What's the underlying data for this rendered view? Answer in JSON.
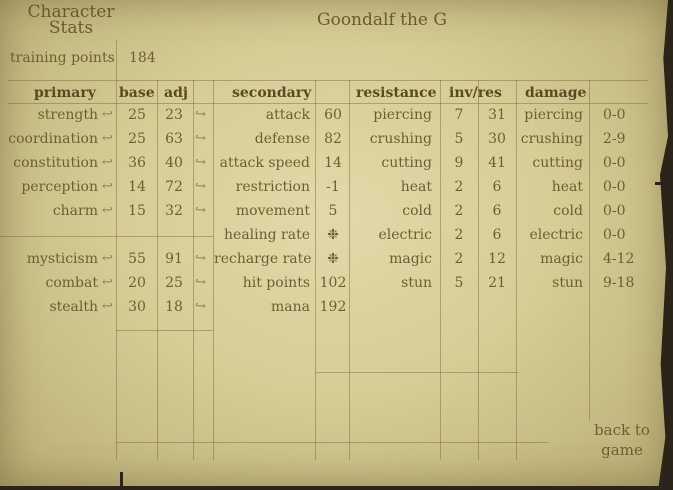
{
  "header": {
    "panel_title_line1": "Character",
    "panel_title_line2": "Stats",
    "character_name": "Goondalf the G",
    "training_points_label": "training points",
    "training_points_value": "184",
    "back_line1": "back to",
    "back_line2": "game"
  },
  "columns": {
    "primary": "primary",
    "base": "base",
    "adj": "adj",
    "secondary": "secondary",
    "resistance": "resistance",
    "inv_res": "inv/res",
    "damage": "damage"
  },
  "primary": [
    {
      "name": "strength",
      "base": "25",
      "adj": "23"
    },
    {
      "name": "coordination",
      "base": "25",
      "adj": "63"
    },
    {
      "name": "constitution",
      "base": "36",
      "adj": "40"
    },
    {
      "name": "perception",
      "base": "14",
      "adj": "72"
    },
    {
      "name": "charm",
      "base": "15",
      "adj": "32"
    }
  ],
  "skills": [
    {
      "name": "mysticism",
      "base": "55",
      "adj": "91"
    },
    {
      "name": "combat",
      "base": "20",
      "adj": "25"
    },
    {
      "name": "stealth",
      "base": "30",
      "adj": "18"
    }
  ],
  "secondary": [
    {
      "name": "attack",
      "value": "60"
    },
    {
      "name": "defense",
      "value": "82"
    },
    {
      "name": "attack speed",
      "value": "14"
    },
    {
      "name": "restriction",
      "value": "-1"
    },
    {
      "name": "movement",
      "value": "5"
    },
    {
      "name": "healing rate",
      "value": "❉"
    },
    {
      "name": "recharge rate",
      "value": "❉"
    },
    {
      "name": "hit points",
      "value": "102"
    },
    {
      "name": "mana",
      "value": "192"
    }
  ],
  "resistance": [
    {
      "name": "piercing",
      "inv": "7",
      "res": "31"
    },
    {
      "name": "crushing",
      "inv": "5",
      "res": "30"
    },
    {
      "name": "cutting",
      "inv": "9",
      "res": "41"
    },
    {
      "name": "heat",
      "inv": "2",
      "res": "6"
    },
    {
      "name": "cold",
      "inv": "2",
      "res": "6"
    },
    {
      "name": "electric",
      "inv": "2",
      "res": "6"
    },
    {
      "name": "magic",
      "inv": "2",
      "res": "12"
    },
    {
      "name": "stun",
      "inv": "5",
      "res": "21"
    }
  ],
  "damage": [
    {
      "name": "piercing",
      "value": "0-0"
    },
    {
      "name": "crushing",
      "value": "2-9"
    },
    {
      "name": "cutting",
      "value": "0-0"
    },
    {
      "name": "heat",
      "value": "0-0"
    },
    {
      "name": "cold",
      "value": "0-0"
    },
    {
      "name": "electric",
      "value": "0-0"
    },
    {
      "name": "magic",
      "value": "4-12"
    },
    {
      "name": "stun",
      "value": "9-18"
    }
  ],
  "icons": {
    "decrease": "left-arrow-icon",
    "increase": "right-arrow-icon"
  }
}
